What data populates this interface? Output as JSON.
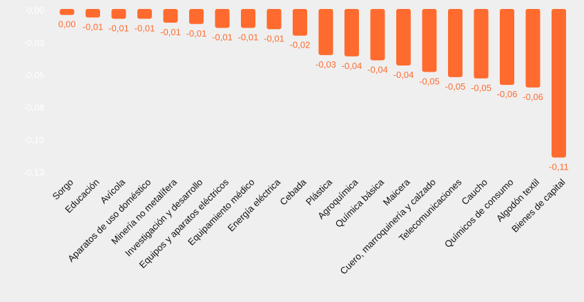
{
  "chart_data": {
    "type": "bar",
    "title": "",
    "xlabel": "",
    "ylabel": "",
    "categories": [
      "Sorgo",
      "Educación",
      "Avícola",
      "Aparatos de uso doméstico",
      "Minería no metalífera",
      "Investigación y desarrollo",
      "Equipos y aparatos eléctricos",
      "Equipamiento médico",
      "Energía eléctrica",
      "Cebada",
      "Plástica",
      "Agroquímica",
      "Química básica",
      "Maicera",
      "Cuero, marroquinería y calzado",
      "Telecomunicaciones",
      "Caucho",
      "Químicos de consumo",
      "Algodón textil",
      "Bienes de capital"
    ],
    "values": [
      -0.003,
      -0.005,
      -0.006,
      -0.006,
      -0.009,
      -0.01,
      -0.013,
      -0.013,
      -0.014,
      -0.019,
      -0.034,
      -0.035,
      -0.038,
      -0.042,
      -0.047,
      -0.051,
      -0.052,
      -0.057,
      -0.059,
      -0.113
    ],
    "data_labels": [
      "0,00",
      "-0,01",
      "-0,01",
      "-0,01",
      "-0,01",
      "-0,01",
      "-0,01",
      "-0,01",
      "-0,01",
      "-0,02",
      "-0,03",
      "-0,04",
      "-0,04",
      "-0,04",
      "-0,05",
      "-0,05",
      "-0,05",
      "-0,06",
      "-0,06",
      "-0,11"
    ],
    "yticks": [
      "0,00",
      "-0,03",
      "-0,05",
      "-0,08",
      "-0,10",
      "-0,13"
    ],
    "ytick_values": [
      0,
      -0.025,
      -0.05,
      -0.075,
      -0.1,
      -0.125
    ],
    "ylim": [
      -0.125,
      0
    ],
    "grid": false,
    "legend": "none",
    "colors": {
      "bar": "#ff6b2e",
      "data_label": "#ff6b2e",
      "ytick": "#ffffff",
      "xtick": "#111111",
      "background": "#efefef"
    }
  }
}
